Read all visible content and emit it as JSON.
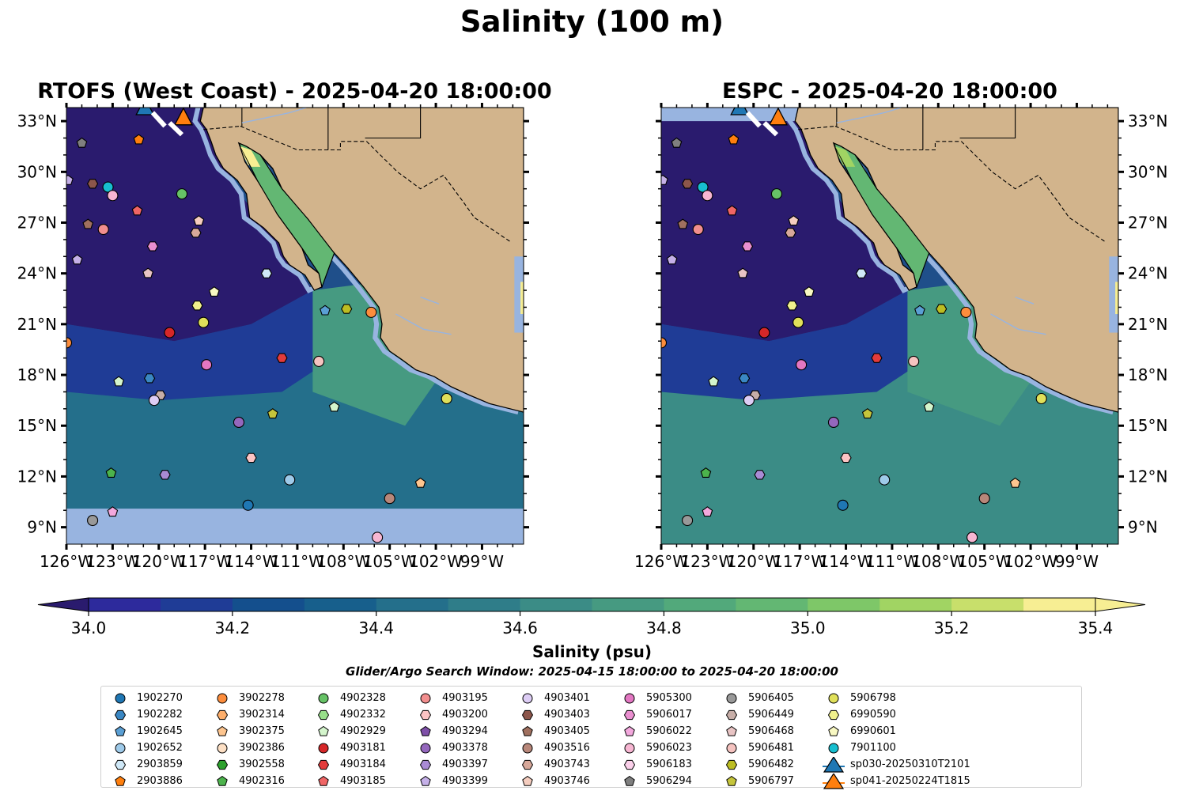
{
  "title": "Salinity (100 m)",
  "maps": [
    {
      "id": "left",
      "title": "RTOFS (West Coast) - 2025-04-20 18:00:00"
    },
    {
      "id": "right",
      "title": "ESPC - 2025-04-20 18:00:00"
    }
  ],
  "lon_ticks": [
    "126°W",
    "123°W",
    "120°W",
    "117°W",
    "114°W",
    "111°W",
    "108°W",
    "105°W",
    "102°W",
    "99°W"
  ],
  "lat_ticks": [
    "33°N",
    "30°N",
    "27°N",
    "24°N",
    "21°N",
    "18°N",
    "15°N",
    "12°N",
    "9°N"
  ],
  "extent": {
    "lon_min": -126,
    "lon_max": -96.3,
    "lat_min": 8.0,
    "lat_max": 33.8
  },
  "colorbar": {
    "label": "Salinity (psu)",
    "min": 34.0,
    "max": 35.4,
    "step": 0.1,
    "extend": "both",
    "ticks": [
      "34.0",
      "34.2",
      "34.4",
      "34.6",
      "34.8",
      "35.0",
      "35.2",
      "35.4"
    ],
    "colors": [
      "#2a1b6e",
      "#2d2a9c",
      "#1f3c96",
      "#144f8d",
      "#175f8c",
      "#246f8b",
      "#2f7d89",
      "#3b8c86",
      "#469a81",
      "#52a97b",
      "#63b773",
      "#7ec768",
      "#a1d463",
      "#c8df6b",
      "#f7ee93"
    ]
  },
  "search_window": "Glider/Argo Search Window: 2025-04-15 18:00:00 to 2025-04-20 18:00:00",
  "legend": [
    {
      "label": "1902270",
      "marker": "circle",
      "color": "#1f77b4"
    },
    {
      "label": "1902282",
      "marker": "hexagon",
      "color": "#3a87c3"
    },
    {
      "label": "1902645",
      "marker": "pentagon",
      "color": "#5a9fd4"
    },
    {
      "label": "1902652",
      "marker": "circle",
      "color": "#9ecae9"
    },
    {
      "label": "2903859",
      "marker": "hexagon",
      "color": "#cfe8f7"
    },
    {
      "label": "2903886",
      "marker": "pentagon",
      "color": "#ff7f0e"
    },
    {
      "label": "3902278",
      "marker": "circle",
      "color": "#fd8d3c"
    },
    {
      "label": "3902314",
      "marker": "hexagon",
      "color": "#fdae6b"
    },
    {
      "label": "3902375",
      "marker": "pentagon",
      "color": "#fdc58f"
    },
    {
      "label": "3902386",
      "marker": "circle",
      "color": "#fde0c5"
    },
    {
      "label": "3902558",
      "marker": "hexagon",
      "color": "#2ca02c"
    },
    {
      "label": "4902316",
      "marker": "pentagon",
      "color": "#4cb34c"
    },
    {
      "label": "4902328",
      "marker": "circle",
      "color": "#66c266"
    },
    {
      "label": "4902332",
      "marker": "hexagon",
      "color": "#98df8a"
    },
    {
      "label": "4902929",
      "marker": "pentagon",
      "color": "#d4f5cc"
    },
    {
      "label": "4903181",
      "marker": "circle",
      "color": "#d62728"
    },
    {
      "label": "4903184",
      "marker": "hexagon",
      "color": "#e33b3b"
    },
    {
      "label": "4903185",
      "marker": "pentagon",
      "color": "#f06565"
    },
    {
      "label": "4903195",
      "marker": "circle",
      "color": "#f28e8e"
    },
    {
      "label": "4903200",
      "marker": "hexagon",
      "color": "#fcc4c4"
    },
    {
      "label": "4903294",
      "marker": "pentagon",
      "color": "#7e4fa8"
    },
    {
      "label": "4903378",
      "marker": "circle",
      "color": "#9467bd"
    },
    {
      "label": "4903397",
      "marker": "hexagon",
      "color": "#a98bd4"
    },
    {
      "label": "4903399",
      "marker": "pentagon",
      "color": "#c5b0e8"
    },
    {
      "label": "4903401",
      "marker": "circle",
      "color": "#ddcdf5"
    },
    {
      "label": "4903403",
      "marker": "hexagon",
      "color": "#8c564b"
    },
    {
      "label": "4903405",
      "marker": "pentagon",
      "color": "#a0705f"
    },
    {
      "label": "4903516",
      "marker": "circle",
      "color": "#b8877a"
    },
    {
      "label": "4903743",
      "marker": "hexagon",
      "color": "#d7a89a"
    },
    {
      "label": "4903746",
      "marker": "pentagon",
      "color": "#f5cdbf"
    },
    {
      "label": "5905300",
      "marker": "circle",
      "color": "#e377c2"
    },
    {
      "label": "5906017",
      "marker": "hexagon",
      "color": "#ea8fd0"
    },
    {
      "label": "5906022",
      "marker": "pentagon",
      "color": "#f3a8dd"
    },
    {
      "label": "5906023",
      "marker": "circle",
      "color": "#f7b6d2"
    },
    {
      "label": "5906183",
      "marker": "hexagon",
      "color": "#fbd0ea"
    },
    {
      "label": "5906294",
      "marker": "pentagon",
      "color": "#7f7f7f"
    },
    {
      "label": "5906405",
      "marker": "circle",
      "color": "#999999"
    },
    {
      "label": "5906449",
      "marker": "hexagon",
      "color": "#c7aea8"
    },
    {
      "label": "5906468",
      "marker": "pentagon",
      "color": "#e8c4c4"
    },
    {
      "label": "5906481",
      "marker": "circle",
      "color": "#f5c3c0"
    },
    {
      "label": "5906482",
      "marker": "hexagon",
      "color": "#bcbd22"
    },
    {
      "label": "5906797",
      "marker": "pentagon",
      "color": "#c5c53b"
    },
    {
      "label": "5906798",
      "marker": "circle",
      "color": "#e0e05a"
    },
    {
      "label": "6990590",
      "marker": "hexagon",
      "color": "#f0f08c"
    },
    {
      "label": "6990601",
      "marker": "pentagon",
      "color": "#f8f8c2"
    },
    {
      "label": "7901100",
      "marker": "circle",
      "color": "#17becf"
    },
    {
      "label": "sp030-20250310T2101",
      "marker": "triangle-line",
      "color": "#1f77b4"
    },
    {
      "label": "sp041-20250224T1815",
      "marker": "triangle-line",
      "color": "#ff7f0e"
    }
  ],
  "floats": [
    {
      "lon": -125.9,
      "lat": 29.5,
      "m": "pentagon",
      "c": "#c5b0e8"
    },
    {
      "lon": -125.0,
      "lat": 31.7,
      "m": "pentagon",
      "c": "#7f7f7f"
    },
    {
      "lon": -121.3,
      "lat": 31.9,
      "m": "pentagon",
      "c": "#ff7f0e"
    },
    {
      "lon": -124.3,
      "lat": 29.3,
      "m": "hexagon",
      "c": "#8c564b"
    },
    {
      "lon": -123.3,
      "lat": 29.1,
      "m": "circle",
      "c": "#17becf"
    },
    {
      "lon": -123.0,
      "lat": 28.6,
      "m": "circle",
      "c": "#f7b6d2"
    },
    {
      "lon": -118.5,
      "lat": 28.7,
      "m": "circle",
      "c": "#66c266"
    },
    {
      "lon": -121.4,
      "lat": 27.7,
      "m": "pentagon",
      "c": "#f06565"
    },
    {
      "lon": -124.6,
      "lat": 26.9,
      "m": "pentagon",
      "c": "#a0705f"
    },
    {
      "lon": -123.6,
      "lat": 26.6,
      "m": "circle",
      "c": "#f28e8e"
    },
    {
      "lon": -117.4,
      "lat": 27.1,
      "m": "pentagon",
      "c": "#f5cdbf"
    },
    {
      "lon": -117.6,
      "lat": 26.4,
      "m": "hexagon",
      "c": "#d7a89a"
    },
    {
      "lon": -120.4,
      "lat": 25.6,
      "m": "hexagon",
      "c": "#ea8fd0"
    },
    {
      "lon": -125.3,
      "lat": 24.8,
      "m": "pentagon",
      "c": "#c5b0e8"
    },
    {
      "lon": -120.7,
      "lat": 24.0,
      "m": "pentagon",
      "c": "#e8c4c4"
    },
    {
      "lon": -113.0,
      "lat": 24.0,
      "m": "hexagon",
      "c": "#cfe8f7"
    },
    {
      "lon": -116.4,
      "lat": 22.9,
      "m": "pentagon",
      "c": "#f8f8c2"
    },
    {
      "lon": -117.5,
      "lat": 22.1,
      "m": "hexagon",
      "c": "#f0f08c"
    },
    {
      "lon": -117.1,
      "lat": 21.1,
      "m": "circle",
      "c": "#e0e05a"
    },
    {
      "lon": -119.3,
      "lat": 20.5,
      "m": "circle",
      "c": "#d62728"
    },
    {
      "lon": -109.2,
      "lat": 21.8,
      "m": "pentagon",
      "c": "#5a9fd4"
    },
    {
      "lon": -107.8,
      "lat": 21.9,
      "m": "hexagon",
      "c": "#bcbd22"
    },
    {
      "lon": -106.2,
      "lat": 21.7,
      "m": "circle",
      "c": "#fd8d3c"
    },
    {
      "lon": -112.0,
      "lat": 19.0,
      "m": "hexagon",
      "c": "#e33b3b"
    },
    {
      "lon": -109.6,
      "lat": 18.8,
      "m": "circle",
      "c": "#f5c3c0"
    },
    {
      "lon": -116.9,
      "lat": 18.6,
      "m": "circle",
      "c": "#e377c2"
    },
    {
      "lon": -122.6,
      "lat": 17.6,
      "m": "pentagon",
      "c": "#d4f5cc"
    },
    {
      "lon": -120.6,
      "lat": 17.8,
      "m": "hexagon",
      "c": "#3a87c3"
    },
    {
      "lon": -119.9,
      "lat": 16.8,
      "m": "hexagon",
      "c": "#c7aea8"
    },
    {
      "lon": -120.3,
      "lat": 16.5,
      "m": "circle",
      "c": "#ddcdf5"
    },
    {
      "lon": -108.6,
      "lat": 16.1,
      "m": "pentagon",
      "c": "#d4f5cc"
    },
    {
      "lon": -112.6,
      "lat": 15.7,
      "m": "pentagon",
      "c": "#c5c53b"
    },
    {
      "lon": -114.8,
      "lat": 15.2,
      "m": "circle",
      "c": "#9467bd"
    },
    {
      "lon": -101.3,
      "lat": 16.6,
      "m": "circle",
      "c": "#e0e05a"
    },
    {
      "lon": -114.0,
      "lat": 13.1,
      "m": "hexagon",
      "c": "#fcc4c4"
    },
    {
      "lon": -123.1,
      "lat": 12.2,
      "m": "pentagon",
      "c": "#4cb34c"
    },
    {
      "lon": -119.6,
      "lat": 12.1,
      "m": "hexagon",
      "c": "#a98bd4"
    },
    {
      "lon": -111.5,
      "lat": 11.8,
      "m": "circle",
      "c": "#9ecae9"
    },
    {
      "lon": -103.0,
      "lat": 11.6,
      "m": "pentagon",
      "c": "#fdc58f"
    },
    {
      "lon": -114.2,
      "lat": 10.3,
      "m": "circle",
      "c": "#1f77b4"
    },
    {
      "lon": -105.0,
      "lat": 10.7,
      "m": "circle",
      "c": "#b8877a"
    },
    {
      "lon": -123.0,
      "lat": 9.9,
      "m": "pentagon",
      "c": "#f3a8dd"
    },
    {
      "lon": -124.3,
      "lat": 9.4,
      "m": "circle",
      "c": "#999999"
    },
    {
      "lon": -105.8,
      "lat": 8.4,
      "m": "circle",
      "c": "#f7b6d2"
    },
    {
      "lon": -126.0,
      "lat": 19.9,
      "m": "circle",
      "c": "#fd8d3c"
    }
  ],
  "gliders": [
    {
      "lon": -120.9,
      "lat": 33.8,
      "c": "#1f77b4"
    },
    {
      "lon": -118.4,
      "lat": 33.2,
      "c": "#ff7f0e"
    }
  ]
}
